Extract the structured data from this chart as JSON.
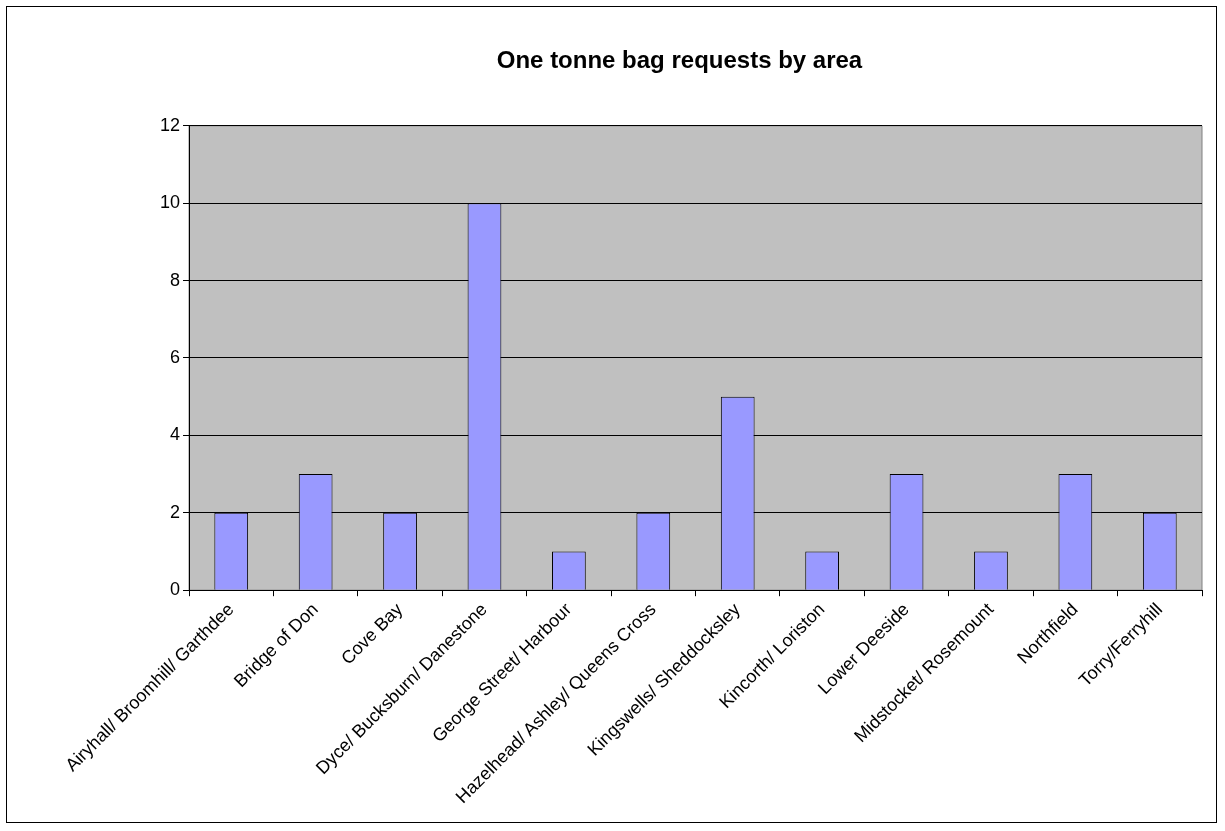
{
  "chart_data": {
    "type": "bar",
    "title": "One tonne bag requests by area",
    "categories": [
      "Airyhall/ Broomhill/ Garthdee",
      "Bridge of Don",
      "Cove Bay",
      "Dyce/ Bucksburn/ Danestone",
      "George Street/ Harbour",
      "Hazelhead/ Ashley/ Queens Cross",
      "Kingswells/ Sheddocksley",
      "Kincorth/ Loriston",
      "Lower Deeside",
      "Midstocket/ Rosemount",
      "Northfield",
      "Torry/Ferryhill"
    ],
    "values": [
      2,
      3,
      2,
      10,
      1,
      2,
      5,
      1,
      3,
      1,
      3,
      2
    ],
    "color": "#9999ff",
    "ylim": [
      0,
      12
    ],
    "yticks": [
      0,
      2,
      4,
      6,
      8,
      10,
      12
    ],
    "grid": "y",
    "legend": false
  }
}
